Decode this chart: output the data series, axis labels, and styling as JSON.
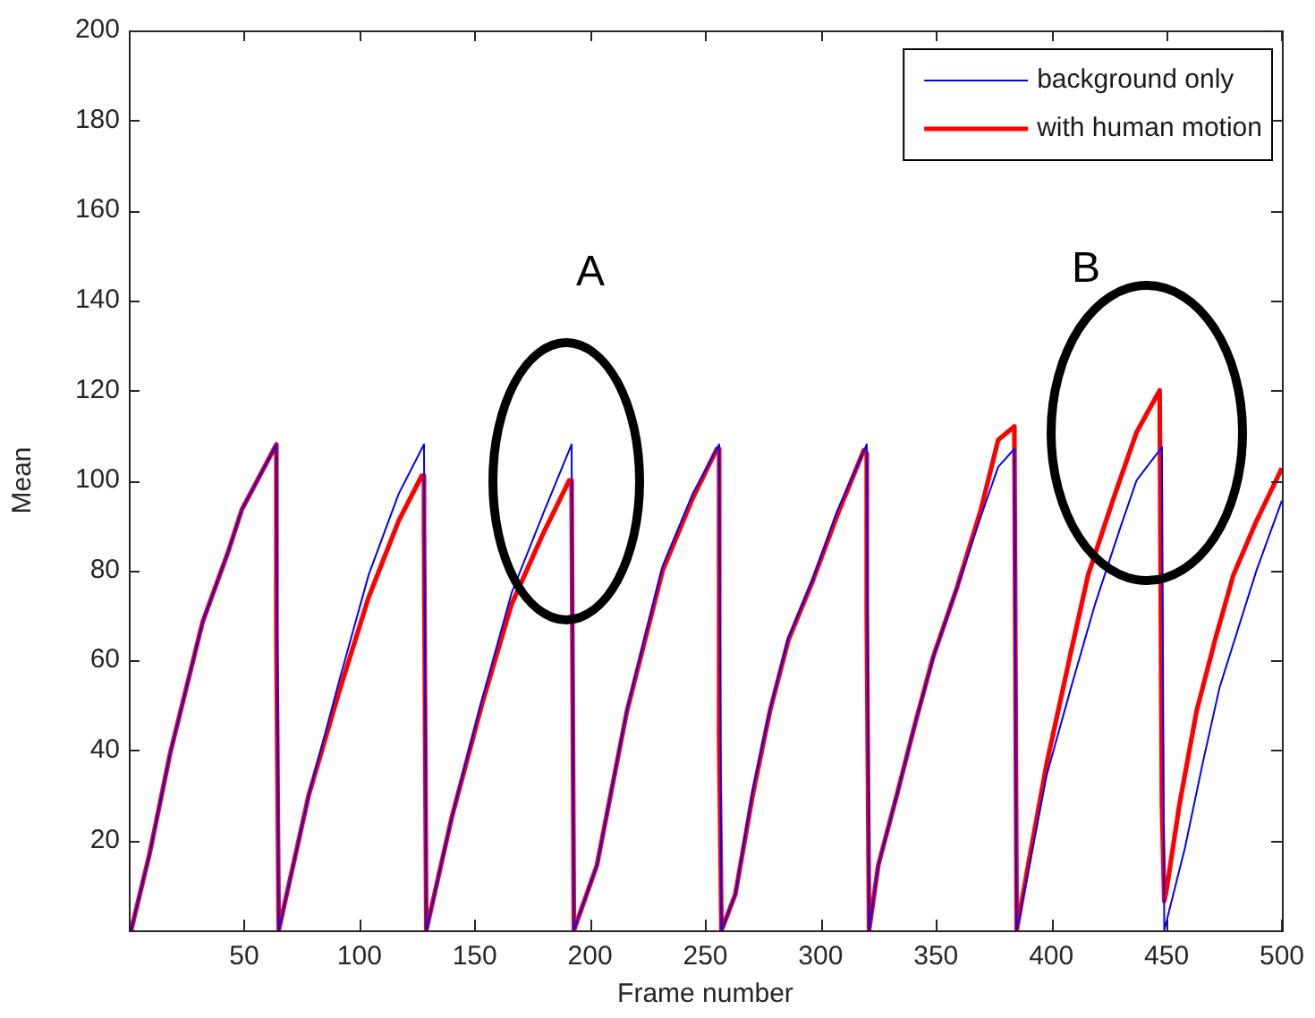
{
  "chart_data": {
    "type": "line",
    "xlabel": "Frame number",
    "ylabel": "Mean",
    "xlim": [
      0,
      500
    ],
    "xticks": [
      50,
      100,
      150,
      200,
      250,
      300,
      350,
      400,
      450,
      500
    ],
    "ylim": [
      0,
      200
    ],
    "yticks": [
      20,
      40,
      60,
      80,
      100,
      120,
      140,
      160,
      180,
      200
    ],
    "legend": "top right",
    "marker": "none",
    "line_style": "solid",
    "series": [
      {
        "name": "background only",
        "color": "#0000ff",
        "x": [
          1,
          9,
          18,
          32,
          43,
          49,
          64,
          65,
          78,
          91,
          104,
          117,
          128,
          129,
          140,
          153,
          166,
          180,
          192,
          193,
          203,
          216,
          231.5,
          244.5,
          256,
          257,
          263,
          270.5,
          278,
          286,
          296.6,
          307,
          320,
          321,
          325,
          333,
          341,
          349,
          359,
          369.5,
          377,
          384,
          385,
          390,
          398,
          408.6,
          419,
          430,
          437,
          448,
          449,
          458,
          465.6,
          473,
          481,
          489,
          500
        ],
        "values": [
          0,
          17,
          39.5,
          68.5,
          84,
          93.5,
          108,
          0,
          30,
          55,
          79,
          97,
          108,
          0,
          25,
          51,
          75,
          93,
          108,
          0,
          14.5,
          49,
          81,
          97,
          108,
          0,
          8,
          31,
          49,
          65,
          78,
          93,
          108,
          0,
          14.5,
          30,
          46,
          61,
          76,
          92,
          103,
          107,
          0,
          13,
          34.5,
          54,
          72.5,
          89.6,
          100,
          107.4,
          0,
          18.4,
          37,
          54,
          67,
          80,
          95.5
        ]
      },
      {
        "name": "with human motion",
        "color": "#ff0000",
        "x": [
          1,
          9,
          18,
          32,
          43,
          49,
          64,
          64,
          65,
          78,
          91,
          104,
          117,
          127,
          128,
          128,
          129,
          140,
          153,
          166,
          179.5,
          191,
          192,
          193,
          203,
          216,
          231.5,
          244.5,
          255,
          256,
          256,
          257,
          263,
          270.5,
          278,
          286,
          296.6,
          307,
          318.7,
          320,
          320,
          321,
          325,
          333,
          341,
          348.7,
          359,
          369.5,
          377,
          384,
          385,
          390,
          398,
          408.6,
          416,
          427,
          437,
          447,
          448,
          449,
          450,
          455.5,
          463,
          471,
          479,
          489,
          500
        ],
        "values": [
          0,
          17,
          39.5,
          68.5,
          84,
          93.5,
          108,
          66,
          0,
          30,
          52.7,
          74,
          91,
          101,
          101,
          90,
          0,
          25,
          50,
          72.5,
          88,
          100,
          100,
          0,
          14.5,
          48.7,
          80,
          96,
          107,
          107,
          42,
          0,
          8,
          30,
          48.7,
          64.5,
          77.7,
          92,
          106.7,
          106,
          71,
          0,
          14.5,
          30,
          46,
          60.6,
          76,
          93.5,
          109,
          112,
          0,
          14.5,
          37,
          62,
          79,
          96,
          110.7,
          120,
          28,
          6.5,
          9,
          27.7,
          48.7,
          64.5,
          79,
          91,
          102.7
        ]
      }
    ],
    "annotations": [
      "A",
      "B"
    ]
  }
}
